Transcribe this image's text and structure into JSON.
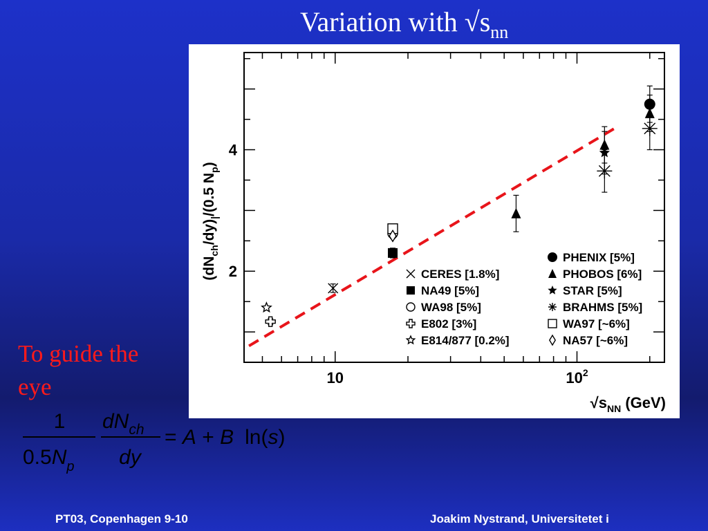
{
  "slide": {
    "title": "Variation with √s",
    "title_sub": "nn",
    "guide_line1": "To guide the",
    "guide_line2": "eye",
    "footer_left": "PT03, Copenhagen 9-10",
    "footer_right": "Joakim Nystrand, Universitetet i"
  },
  "formula": {
    "num1": "1",
    "den1_a": "0.5",
    "den1_b": "N",
    "den1_sub": "p",
    "num2_a": "dN",
    "num2_sub": "ch",
    "den2": "dy",
    "rhs_a": "= ",
    "rhs_A": "A",
    "rhs_plus": " + ",
    "rhs_B": "B",
    "rhs_ln": "ln(",
    "rhs_s": "s",
    "rhs_close": ")"
  },
  "chart_data": {
    "type": "scatter",
    "xscale": "log",
    "xlim": [
      4.2,
      230
    ],
    "ylim": [
      0.5,
      5.6
    ],
    "xticks": [
      {
        "value": 10,
        "label": "10",
        "exp": ""
      },
      {
        "value": 100,
        "label": "10",
        "exp": "2"
      }
    ],
    "yticks": [
      {
        "value": 2,
        "label": "2"
      },
      {
        "value": 4,
        "label": "4"
      }
    ],
    "ylabel": {
      "p1": "(dN",
      "s1": "ch",
      "p2": "/dy)",
      "s2": "|",
      "p3": "/(0.5 N",
      "s3": "p",
      "p4": ")"
    },
    "xlabel": {
      "p1": "√s",
      "s1": "NN",
      "p2": " (GeV)"
    },
    "series": [
      {
        "name": "CERES [1.8%]",
        "marker": "x",
        "points": [
          {
            "x": 9.8,
            "y": 1.72,
            "err": 0.07
          }
        ]
      },
      {
        "name": "NA49 [5%]",
        "marker": "square-filled",
        "points": [
          {
            "x": 17.3,
            "y": 2.3,
            "err": 0.08
          }
        ]
      },
      {
        "name": "WA98 [5%]",
        "marker": "circle-open",
        "points": [
          {
            "x": 17.3,
            "y": 2.62,
            "err": 0.08
          }
        ]
      },
      {
        "name": "E802 [3%]",
        "marker": "cross-open",
        "points": [
          {
            "x": 5.4,
            "y": 1.17,
            "err": 0.05
          }
        ]
      },
      {
        "name": "E814/877 [0.2%]",
        "marker": "star-open",
        "points": [
          {
            "x": 5.2,
            "y": 1.4,
            "err": 0.0
          }
        ]
      },
      {
        "name": "PHENIX [5%]",
        "marker": "circle-filled",
        "points": [
          {
            "x": 200,
            "y": 4.75,
            "err": 0.3
          }
        ]
      },
      {
        "name": "PHOBOS [6%]",
        "marker": "triangle-filled",
        "points": [
          {
            "x": 56,
            "y": 2.95,
            "err": 0.3
          },
          {
            "x": 130,
            "y": 4.08,
            "err": 0.3
          },
          {
            "x": 200,
            "y": 4.6,
            "err": 0.3
          }
        ]
      },
      {
        "name": "STAR [5%]",
        "marker": "star-filled",
        "points": [
          {
            "x": 130,
            "y": 3.95,
            "err": 0.35
          }
        ]
      },
      {
        "name": "BRAHMS [5%]",
        "marker": "asterisk",
        "points": [
          {
            "x": 130,
            "y": 3.65,
            "err": 0.35
          },
          {
            "x": 200,
            "y": 4.35,
            "err": 0.35
          }
        ]
      },
      {
        "name": "WA97 [~6%]",
        "marker": "square-open",
        "points": [
          {
            "x": 17.3,
            "y": 2.7,
            "err": 0.0
          }
        ]
      },
      {
        "name": "NA57 [~6%]",
        "marker": "diamond-open",
        "points": [
          {
            "x": 17.3,
            "y": 2.58,
            "err": 0.0
          }
        ]
      }
    ],
    "fit_line": {
      "style": "dashed",
      "color": "#e8141a",
      "x": [
        4.4,
        150
      ],
      "y": [
        0.77,
        4.4
      ]
    },
    "legend_position": "lower-right",
    "legend_columns": [
      [
        "CERES [1.8%]",
        "NA49 [5%]",
        "WA98 [5%]",
        "E802 [3%]",
        "E814/877 [0.2%]"
      ],
      [
        "PHENIX [5%]",
        "PHOBOS [6%]",
        "STAR [5%]",
        "BRAHMS [5%]",
        "WA97 [~6%]",
        "NA57 [~6%]"
      ]
    ],
    "grid": false
  },
  "colors": {
    "title": "#ffffff",
    "guide_text": "#ff1a1a",
    "fit_line": "#e8141a",
    "plot_bg": "#ffffff",
    "ink": "#000000"
  }
}
